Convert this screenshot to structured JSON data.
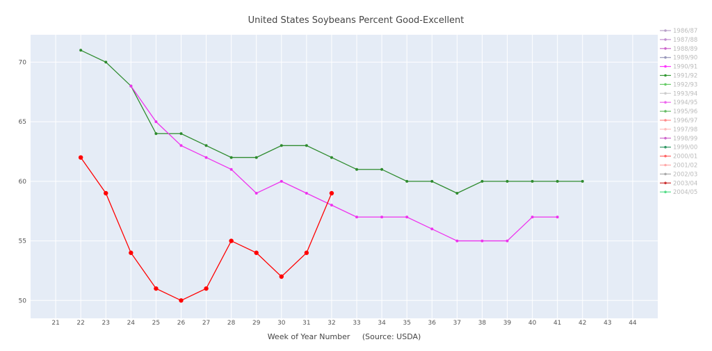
{
  "chart_data": {
    "type": "line",
    "title": "United States Soybeans Percent Good-Excellent",
    "xlabel": "Week of Year Number     (Source: USDA)",
    "ylabel": "",
    "xlim": [
      20,
      45
    ],
    "ylim": [
      48.5,
      72.3
    ],
    "xticks": [
      21,
      22,
      23,
      24,
      25,
      26,
      27,
      28,
      29,
      30,
      31,
      32,
      33,
      34,
      35,
      36,
      37,
      38,
      39,
      40,
      41,
      42,
      43,
      44
    ],
    "yticks": [
      50,
      55,
      60,
      65,
      70
    ],
    "grid": true,
    "legend_position": "right",
    "legend": [
      {
        "name": "1986/87",
        "color": "#b8a0c8"
      },
      {
        "name": "1987/88",
        "color": "#c08fd0"
      },
      {
        "name": "1988/89",
        "color": "#cc66cc"
      },
      {
        "name": "1989/90",
        "color": "#9999bb"
      },
      {
        "name": "1990/91",
        "color": "#ff33ff"
      },
      {
        "name": "1991/92",
        "color": "#339933"
      },
      {
        "name": "1992/93",
        "color": "#66cc66"
      },
      {
        "name": "1993/94",
        "color": "#cccccc"
      },
      {
        "name": "1994/95",
        "color": "#ee66ee"
      },
      {
        "name": "1995/96",
        "color": "#66bb66"
      },
      {
        "name": "1996/97",
        "color": "#ff8888"
      },
      {
        "name": "1997/98",
        "color": "#ffbbbb"
      },
      {
        "name": "1998/99",
        "color": "#cc66cc"
      },
      {
        "name": "1999/00",
        "color": "#339966"
      },
      {
        "name": "2000/01",
        "color": "#ff6666"
      },
      {
        "name": "2001/02",
        "color": "#ffaaaa"
      },
      {
        "name": "2002/03",
        "color": "#aaaaaa"
      },
      {
        "name": "2003/04",
        "color": "#cc3333"
      },
      {
        "name": "2004/05",
        "color": "#55dd88"
      }
    ],
    "series": [
      {
        "color": "#2e8b2e",
        "marker": "small",
        "x": [
          22,
          23,
          24,
          25,
          26,
          27,
          28,
          29,
          30,
          31,
          32,
          33,
          34,
          35,
          36,
          37,
          38,
          39,
          40,
          41,
          42
        ],
        "values": [
          71,
          70,
          68,
          64,
          64,
          63,
          62,
          62,
          63,
          63,
          62,
          61,
          61,
          60,
          60,
          59,
          60,
          60,
          60,
          60,
          60
        ]
      },
      {
        "color": "#ee33ee",
        "marker": "small",
        "x": [
          24,
          25,
          26,
          27,
          28,
          29,
          30,
          31,
          32,
          33,
          34,
          35,
          36,
          37,
          38,
          39,
          40,
          41
        ],
        "values": [
          68,
          65,
          63,
          62,
          61,
          59,
          60,
          59,
          58,
          57,
          57,
          57,
          56,
          55,
          55,
          55,
          57,
          57
        ]
      },
      {
        "color": "#ff0000",
        "marker": "large",
        "x": [
          22,
          23,
          24,
          25,
          26,
          27,
          28,
          29,
          30,
          31,
          32
        ],
        "values": [
          62,
          59,
          54,
          51,
          50,
          51,
          55,
          54,
          52,
          54,
          59
        ]
      }
    ]
  }
}
